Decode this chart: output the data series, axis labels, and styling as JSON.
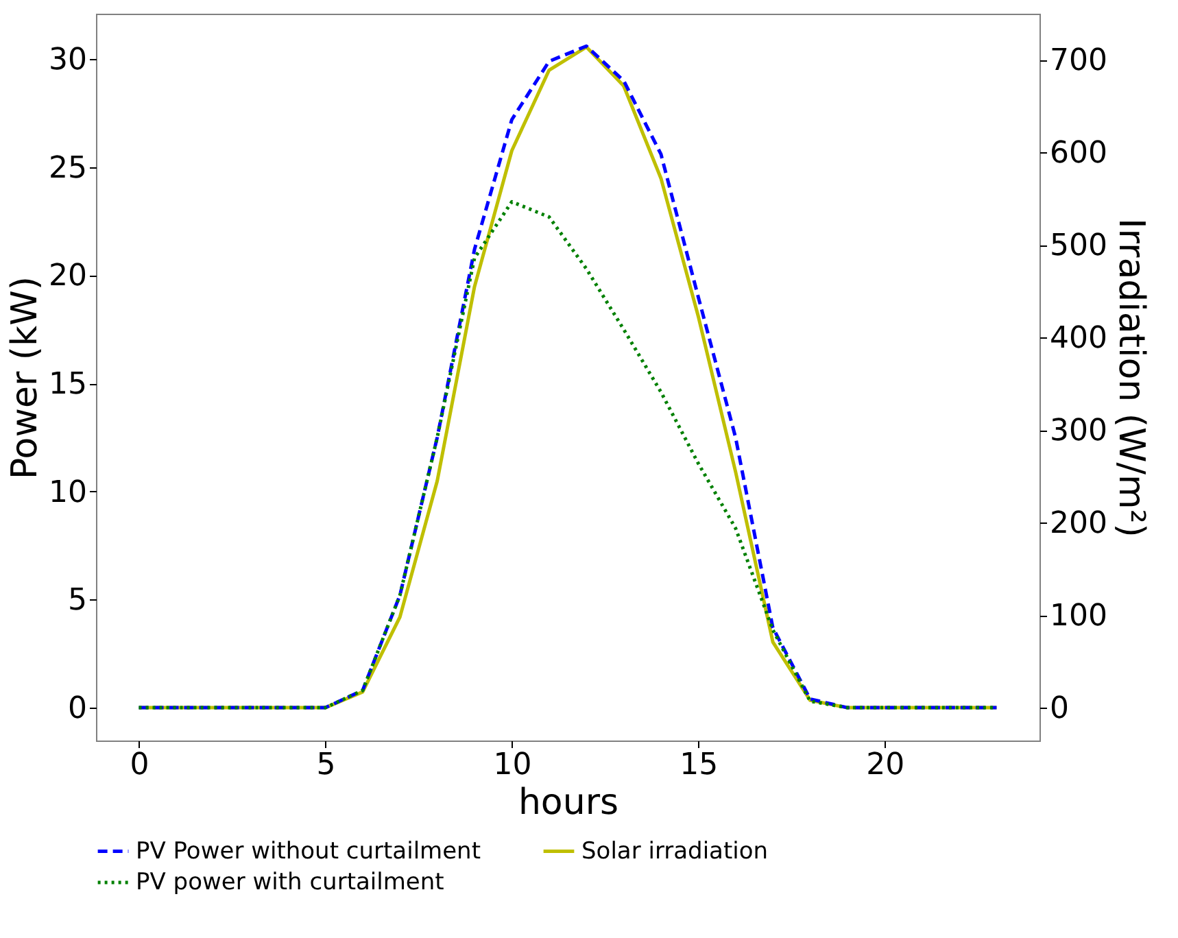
{
  "chart_data": {
    "type": "line",
    "xlabel": "hours",
    "ylabel": "Power (kW)",
    "y2label": "Irradiation (W/m²)",
    "x": [
      0,
      1,
      2,
      3,
      4,
      5,
      6,
      7,
      8,
      9,
      10,
      11,
      12,
      13,
      14,
      15,
      16,
      17,
      18,
      19,
      20,
      21,
      22,
      23
    ],
    "series": [
      {
        "name": "PV Power without curtailment",
        "color": "#0000ff",
        "line_style": "dashed",
        "values": [
          0,
          0,
          0,
          0,
          0,
          0,
          0.8,
          5.2,
          12.5,
          21.2,
          27.2,
          29.9,
          30.6,
          29.0,
          25.6,
          19.0,
          12.5,
          3.7,
          0.4,
          0,
          0,
          0,
          0,
          0
        ]
      },
      {
        "name": "PV power with curtailment",
        "color": "#008000",
        "line_style": "dotted",
        "values": [
          0,
          0,
          0,
          0,
          0,
          0,
          0.8,
          5.2,
          12.5,
          20.8,
          23.4,
          22.7,
          20.3,
          17.5,
          14.6,
          11.3,
          8.3,
          3.6,
          0.3,
          0,
          0,
          0,
          0,
          0
        ]
      },
      {
        "name": "Solar irradiation",
        "color": "#bfbf00",
        "line_style": "solid",
        "axis": "y2",
        "values": [
          0,
          0,
          0,
          0,
          0,
          0,
          17,
          98,
          245,
          455,
          602,
          689,
          714,
          672,
          572,
          423,
          255,
          71,
          8,
          0,
          0,
          0,
          0,
          0
        ]
      }
    ],
    "xlim": [
      -1.15,
      24.15
    ],
    "xticks": [
      0,
      5,
      10,
      15,
      20
    ],
    "ylim": [
      -1.52,
      32.1
    ],
    "yticks": [
      0,
      5,
      10,
      15,
      20,
      25,
      30
    ],
    "y2lim": [
      -35.5,
      750
    ],
    "y2ticks": [
      0,
      100,
      200,
      300,
      400,
      500,
      600,
      700
    ],
    "grid": false,
    "legend": "bottom",
    "marker": "none"
  }
}
